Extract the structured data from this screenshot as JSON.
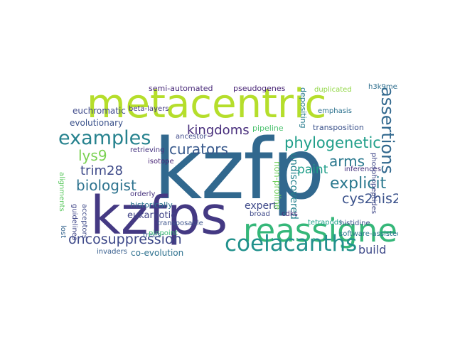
{
  "words": [
    {
      "text": "kzfp",
      "color": "#31688e"
    },
    {
      "text": "metacentric",
      "color": "#b5de2b"
    },
    {
      "text": "kzfps",
      "color": "#443983"
    },
    {
      "text": "reassigned",
      "color": "#35b779"
    },
    {
      "text": "coelacanths",
      "color": "#21918c"
    },
    {
      "text": "examples",
      "color": "#26828e"
    },
    {
      "text": "phylogenetic",
      "color": "#1f9e89"
    },
    {
      "text": "assertions",
      "color": "#31688e"
    },
    {
      "text": "oncosuppression",
      "color": "#3e4989"
    },
    {
      "text": "explicit",
      "color": "#2a788e"
    },
    {
      "text": "cys2his2",
      "color": "#3b528b"
    },
    {
      "text": "kingdoms",
      "color": "#472d7b"
    },
    {
      "text": "curators",
      "color": "#38598c"
    },
    {
      "text": "biologist",
      "color": "#2c728e"
    },
    {
      "text": "trim28",
      "color": "#3e4a89"
    },
    {
      "text": "lys9",
      "color": "#7ad151"
    },
    {
      "text": "arms",
      "color": "#2a788e"
    },
    {
      "text": "paint",
      "color": "#1f9e89"
    },
    {
      "text": "build",
      "color": "#3e4989"
    },
    {
      "text": "expert",
      "color": "#3e4989"
    },
    {
      "text": "evolutionary",
      "color": "#3b528b"
    },
    {
      "text": "euchromatic",
      "color": "#3e4989"
    },
    {
      "text": "semi-automated",
      "color": "#472878"
    },
    {
      "text": "pseudogenes",
      "color": "#482475"
    },
    {
      "text": "eukaryotic",
      "color": "#414487"
    },
    {
      "text": "co-evolution",
      "color": "#2d708e"
    },
    {
      "text": "undiscovered",
      "color": "#26828e"
    },
    {
      "text": "non-proline",
      "color": "#6ece58"
    },
    {
      "text": "transposition",
      "color": "#3b528b"
    },
    {
      "text": "depositing",
      "color": "#287c8e"
    },
    {
      "text": "emphasis",
      "color": "#2c728e"
    },
    {
      "text": "inferences",
      "color": "#46327e"
    },
    {
      "text": "tetrapods",
      "color": "#1fa088"
    },
    {
      "text": "software-assisted",
      "color": "#2a788e"
    },
    {
      "text": "phosphopeptides",
      "color": "#3f4788"
    },
    {
      "text": "histidine",
      "color": "#3b528b"
    },
    {
      "text": "pipeline",
      "color": "#4ac16d"
    },
    {
      "text": "historically",
      "color": "#2c728e"
    },
    {
      "text": "beta-layers",
      "color": "#443983"
    },
    {
      "text": "retrieving",
      "color": "#463480"
    },
    {
      "text": "ancestor",
      "color": "#3e4989"
    },
    {
      "text": "orderly",
      "color": "#46327e"
    },
    {
      "text": "isotope",
      "color": "#482576"
    },
    {
      "text": "transposable",
      "color": "#3b528b"
    },
    {
      "text": "trees",
      "color": "#365c8d"
    },
    {
      "text": "broad",
      "color": "#3e4989"
    },
    {
      "text": "cdks",
      "color": "#482878"
    },
    {
      "text": "pinpoint",
      "color": "#3dbc74"
    },
    {
      "text": "acceptors",
      "color": "#3e4a89"
    },
    {
      "text": "guidelines",
      "color": "#404688"
    },
    {
      "text": "lost",
      "color": "#33638d"
    },
    {
      "text": "invaders",
      "color": "#365d8d"
    },
    {
      "text": "duplicated",
      "color": "#90d743"
    },
    {
      "text": "h3k9me3",
      "color": "#2e6e8e"
    },
    {
      "text": "alignments",
      "color": "#5ec962"
    }
  ]
}
